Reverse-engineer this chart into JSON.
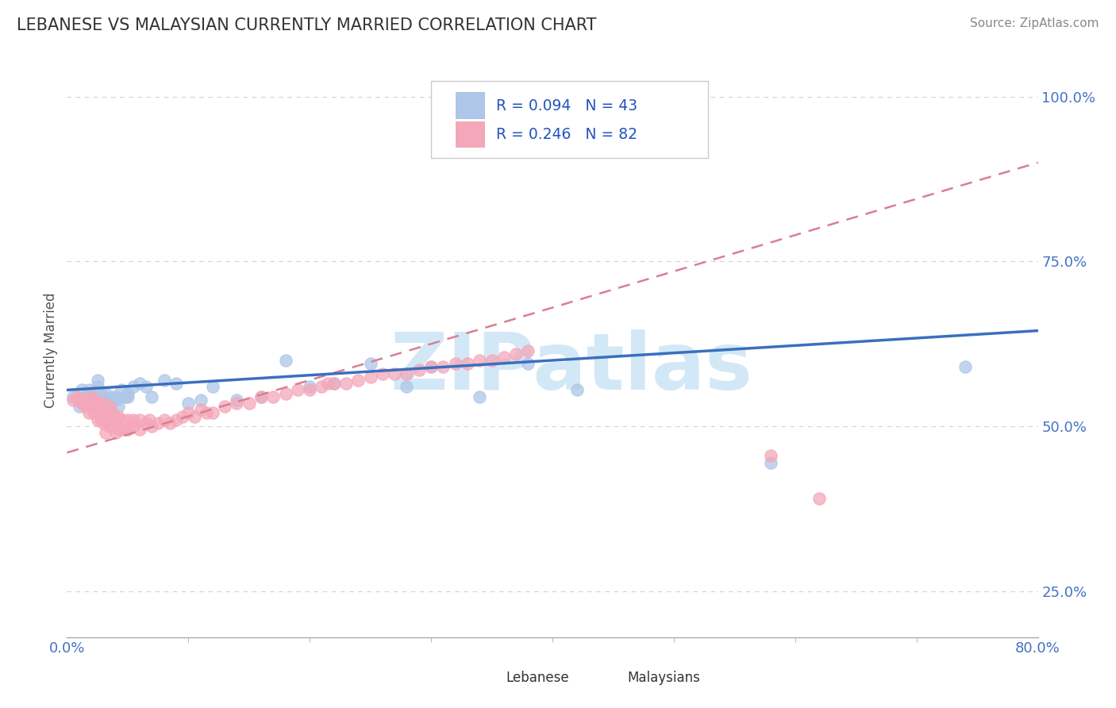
{
  "title": "LEBANESE VS MALAYSIAN CURRENTLY MARRIED CORRELATION CHART",
  "source_text": "Source: ZipAtlas.com",
  "ylabel": "Currently Married",
  "xlim": [
    0.0,
    0.8
  ],
  "ylim": [
    0.18,
    1.05
  ],
  "ytick_positions": [
    0.25,
    0.5,
    0.75,
    1.0
  ],
  "ytick_labels": [
    "25.0%",
    "50.0%",
    "75.0%",
    "100.0%"
  ],
  "color_lebanese": "#aec6e8",
  "color_malaysians": "#f4a7b9",
  "color_blue_line": "#3b6fbe",
  "color_pink_line": "#d97f8f",
  "color_title": "#333333",
  "color_axis_labels": "#4472c4",
  "watermark": "ZIPatlas",
  "watermark_color": "#cce4f5",
  "lebanese_x": [
    0.005,
    0.01,
    0.012,
    0.015,
    0.018,
    0.02,
    0.022,
    0.025,
    0.025,
    0.028,
    0.03,
    0.032,
    0.035,
    0.038,
    0.04,
    0.04,
    0.042,
    0.045,
    0.048,
    0.05,
    0.05,
    0.055,
    0.06,
    0.065,
    0.07,
    0.08,
    0.09,
    0.1,
    0.11,
    0.12,
    0.14,
    0.16,
    0.18,
    0.2,
    0.22,
    0.25,
    0.28,
    0.3,
    0.34,
    0.38,
    0.42,
    0.58,
    0.74
  ],
  "lebanese_y": [
    0.545,
    0.53,
    0.555,
    0.545,
    0.555,
    0.55,
    0.54,
    0.56,
    0.57,
    0.55,
    0.545,
    0.55,
    0.535,
    0.545,
    0.545,
    0.54,
    0.53,
    0.555,
    0.545,
    0.55,
    0.545,
    0.56,
    0.565,
    0.56,
    0.545,
    0.57,
    0.565,
    0.535,
    0.54,
    0.56,
    0.54,
    0.545,
    0.6,
    0.56,
    0.565,
    0.595,
    0.56,
    0.59,
    0.545,
    0.595,
    0.555,
    0.445,
    0.59
  ],
  "malaysians_x": [
    0.005,
    0.008,
    0.01,
    0.012,
    0.015,
    0.015,
    0.018,
    0.018,
    0.02,
    0.02,
    0.022,
    0.022,
    0.025,
    0.025,
    0.025,
    0.028,
    0.028,
    0.03,
    0.03,
    0.03,
    0.032,
    0.032,
    0.035,
    0.035,
    0.035,
    0.038,
    0.038,
    0.04,
    0.04,
    0.042,
    0.042,
    0.045,
    0.045,
    0.048,
    0.05,
    0.05,
    0.055,
    0.055,
    0.06,
    0.06,
    0.065,
    0.068,
    0.07,
    0.075,
    0.08,
    0.085,
    0.09,
    0.095,
    0.1,
    0.105,
    0.11,
    0.115,
    0.12,
    0.13,
    0.14,
    0.15,
    0.16,
    0.17,
    0.18,
    0.19,
    0.2,
    0.21,
    0.215,
    0.22,
    0.23,
    0.24,
    0.25,
    0.26,
    0.27,
    0.28,
    0.29,
    0.3,
    0.31,
    0.32,
    0.33,
    0.34,
    0.35,
    0.36,
    0.37,
    0.38,
    0.58,
    0.62
  ],
  "malaysians_y": [
    0.54,
    0.545,
    0.54,
    0.535,
    0.53,
    0.54,
    0.52,
    0.535,
    0.53,
    0.545,
    0.52,
    0.54,
    0.51,
    0.525,
    0.535,
    0.51,
    0.53,
    0.505,
    0.52,
    0.535,
    0.49,
    0.51,
    0.5,
    0.52,
    0.53,
    0.5,
    0.52,
    0.49,
    0.51,
    0.495,
    0.515,
    0.495,
    0.51,
    0.495,
    0.495,
    0.51,
    0.5,
    0.51,
    0.495,
    0.51,
    0.505,
    0.51,
    0.5,
    0.505,
    0.51,
    0.505,
    0.51,
    0.515,
    0.52,
    0.515,
    0.525,
    0.52,
    0.52,
    0.53,
    0.535,
    0.535,
    0.545,
    0.545,
    0.55,
    0.555,
    0.555,
    0.56,
    0.565,
    0.565,
    0.565,
    0.57,
    0.575,
    0.58,
    0.58,
    0.58,
    0.585,
    0.59,
    0.59,
    0.595,
    0.595,
    0.6,
    0.6,
    0.605,
    0.61,
    0.615,
    0.455,
    0.39
  ],
  "blue_line_x0": 0.0,
  "blue_line_y0": 0.555,
  "blue_line_x1": 0.8,
  "blue_line_y1": 0.645,
  "pink_line_x0": 0.0,
  "pink_line_y0": 0.46,
  "pink_line_x1": 0.8,
  "pink_line_y1": 0.9
}
